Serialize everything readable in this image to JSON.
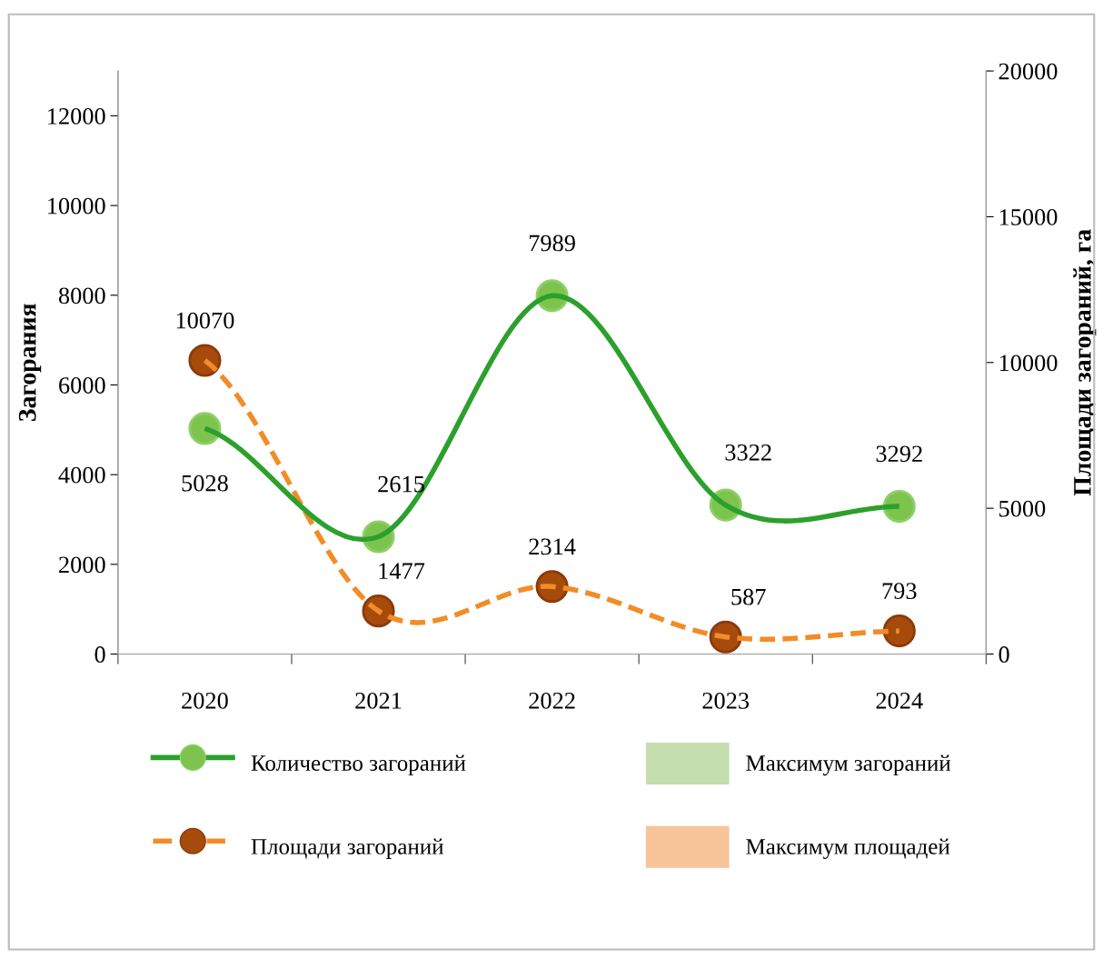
{
  "chart_data": {
    "type": "line",
    "categories": [
      "2020",
      "2021",
      "2022",
      "2023",
      "2024"
    ],
    "ylabel": "Загорания",
    "y2label": "Площади загораний, га",
    "ylim": [
      0,
      13000
    ],
    "yticks": [
      0,
      2000,
      4000,
      6000,
      8000,
      10000,
      12000
    ],
    "y2lim": [
      0,
      20000
    ],
    "y2ticks": [
      0,
      5000,
      10000,
      15000,
      20000
    ],
    "series": [
      {
        "name": "Количество загораний",
        "color": "#2ca02c",
        "values": [
          5028,
          2615,
          7989,
          3322,
          3292
        ],
        "marker": "circle",
        "line_style": "solid"
      },
      {
        "name": "Площади загораний",
        "color": "#f28c28",
        "values": [
          10070,
          1477,
          2314,
          587,
          793
        ],
        "axis": "y2",
        "marker": "circle",
        "line_style": "dashed"
      },
      {
        "name": "Максимум загораний",
        "type": "bar",
        "color": "#c5deb0",
        "values": [
          null,
          null,
          null,
          null,
          null
        ]
      },
      {
        "name": "Максимум площадей",
        "type": "bar",
        "color": "#f8c49a",
        "values": [
          null,
          null,
          null,
          null,
          null
        ]
      }
    ],
    "data_labels": true,
    "grid": false,
    "legend": "bottom"
  }
}
